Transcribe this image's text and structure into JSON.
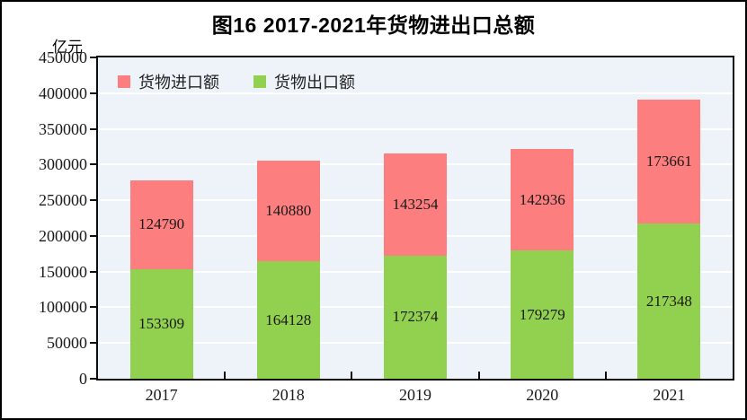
{
  "figure": {
    "title": "图16  2017-2021年货物进出口总额",
    "unit_label": "亿元"
  },
  "legend": [
    {
      "name": "imports",
      "label": "货物进口额",
      "color": "#FC7E7E"
    },
    {
      "name": "exports",
      "label": "货物出口额",
      "color": "#92D050"
    }
  ],
  "chart_data": {
    "type": "bar",
    "stacked": true,
    "title": "图16  2017-2021年货物进出口总额",
    "ylabel": "亿元",
    "categories": [
      "2017",
      "2018",
      "2019",
      "2020",
      "2021"
    ],
    "series": [
      {
        "name": "货物出口额",
        "key": "exports",
        "color": "#92D050",
        "values": [
          153309,
          164128,
          172374,
          179279,
          217348
        ]
      },
      {
        "name": "货物进口额",
        "key": "imports",
        "color": "#FC7E7E",
        "values": [
          124790,
          140880,
          143254,
          142936,
          173661
        ]
      }
    ],
    "ylim": [
      0,
      450000
    ],
    "yticks": [
      0,
      50000,
      100000,
      150000,
      200000,
      250000,
      300000,
      350000,
      400000,
      450000
    ],
    "grid": true,
    "gridline_color": "#FFFFFF",
    "plot_bg": "#EDF3F8",
    "legend_position": "top-left-inside"
  }
}
